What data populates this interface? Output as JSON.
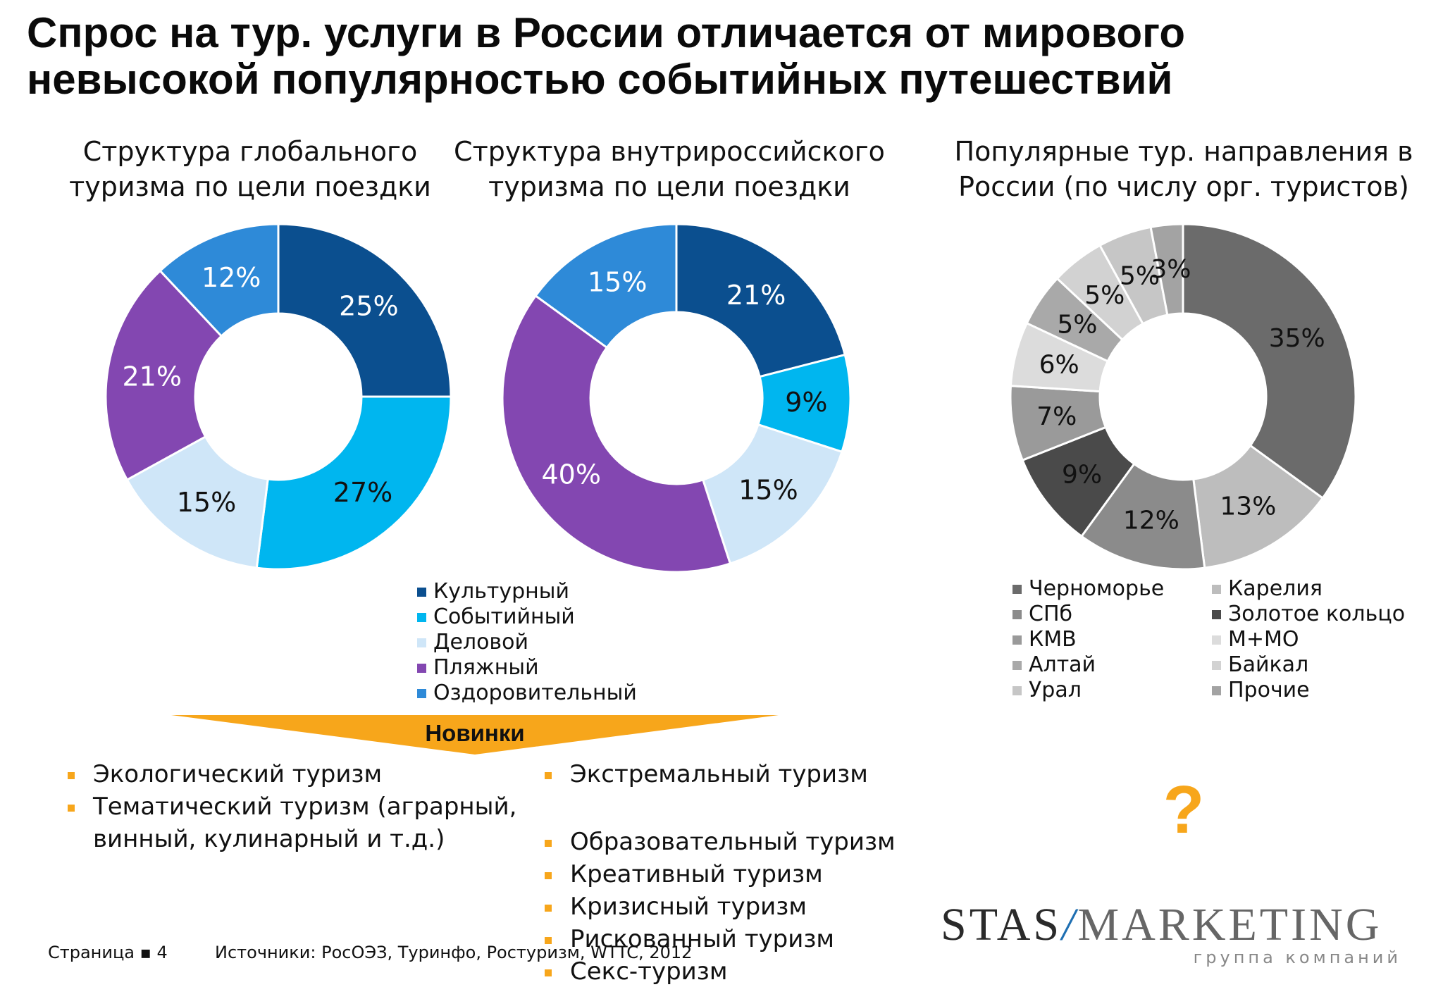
{
  "title": {
    "line1": "Спрос на тур. услуги в России отличается от мирового",
    "line2": "невысокой популярностью событийных путешествий"
  },
  "chart_data": [
    {
      "type": "donut",
      "title_lines": [
        "Структура глобального",
        "туризма по цели поездки"
      ],
      "categories": [
        "Культурный",
        "Событийный",
        "Деловой",
        "Пляжный",
        "Оздоровительный"
      ],
      "values": [
        25,
        27,
        15,
        21,
        12
      ],
      "labels": [
        "25%",
        "27%",
        "15%",
        "21%",
        "12%"
      ],
      "colors": [
        "#0b4f8f",
        "#00b6ef",
        "#cfe6f8",
        "#8347b1",
        "#2e8ad8"
      ],
      "label_colors": [
        "#ffffff",
        "#111111",
        "#111111",
        "#ffffff",
        "#ffffff"
      ]
    },
    {
      "type": "donut",
      "title_lines": [
        "Структура внутрироссийского",
        "туризма по цели поездки"
      ],
      "categories": [
        "Культурный",
        "Событийный",
        "Деловой",
        "Пляжный",
        "Оздоровительный"
      ],
      "values": [
        21,
        9,
        15,
        40,
        15
      ],
      "labels": [
        "21%",
        "9%",
        "15%",
        "40%",
        "15%"
      ],
      "colors": [
        "#0b4f8f",
        "#00b6ef",
        "#cfe6f8",
        "#8347b1",
        "#2e8ad8"
      ],
      "label_colors": [
        "#ffffff",
        "#111111",
        "#111111",
        "#ffffff",
        "#ffffff"
      ],
      "legend": [
        "Культурный",
        "Событийный",
        "Деловой",
        "Пляжный",
        "Оздоровительный"
      ]
    },
    {
      "type": "donut",
      "title_lines": [
        "Популярные тур. направления в",
        "России (по числу орг. туристов)"
      ],
      "categories": [
        "Черноморье",
        "Карелия",
        "СПб",
        "Золотое кольцо",
        "КМВ",
        "М+МО",
        "Алтай",
        "Байкал",
        "Урал",
        "Прочие"
      ],
      "values": [
        35,
        13,
        12,
        9,
        7,
        6,
        5,
        5,
        5,
        3
      ],
      "labels": [
        "35%",
        "13%",
        "12%",
        "9%",
        "7%",
        "6%",
        "5%",
        "5%",
        "5%",
        "3%"
      ],
      "colors": [
        "#6b6b6b",
        "#bdbdbd",
        "#8b8b8b",
        "#4a4a4a",
        "#9a9a9a",
        "#dcdcdc",
        "#a9a9a9",
        "#d2d2d2",
        "#c6c6c6",
        "#a3a3a3"
      ],
      "label_colors": [
        "#111111",
        "#111111",
        "#111111",
        "#111111",
        "#111111",
        "#111111",
        "#111111",
        "#111111",
        "#111111",
        "#111111"
      ],
      "legend_col1": [
        "Черноморье",
        "СПб",
        "КМВ",
        "Алтай",
        "Урал"
      ],
      "legend_col2": [
        "Карелия",
        "Золотое кольцо",
        "М+МО",
        "Байкал",
        "Прочие"
      ]
    }
  ],
  "novelties": {
    "label": "Новинки",
    "left": [
      "Экологический туризм",
      "Тематический туризм (аграрный, винный, кулинарный и т.д.)"
    ],
    "right_top": [
      "Экстремальный туризм"
    ],
    "right_bottom": [
      "Образовательный туризм",
      "Креативный туризм",
      "Кризисный туризм",
      "Рискованный туризм",
      "Секс-туризм"
    ],
    "accent_color": "#f7a61b"
  },
  "question_mark": "?",
  "footer": {
    "page_label": "Страница ▪ 4",
    "sources": "Источники: РосОЭЗ, Туринфо, Ростуризм, WTTC, 2012"
  },
  "logo": {
    "part1": "STAS",
    "slash": "/",
    "part2": "MARKETING",
    "subtitle": "группа компаний"
  }
}
